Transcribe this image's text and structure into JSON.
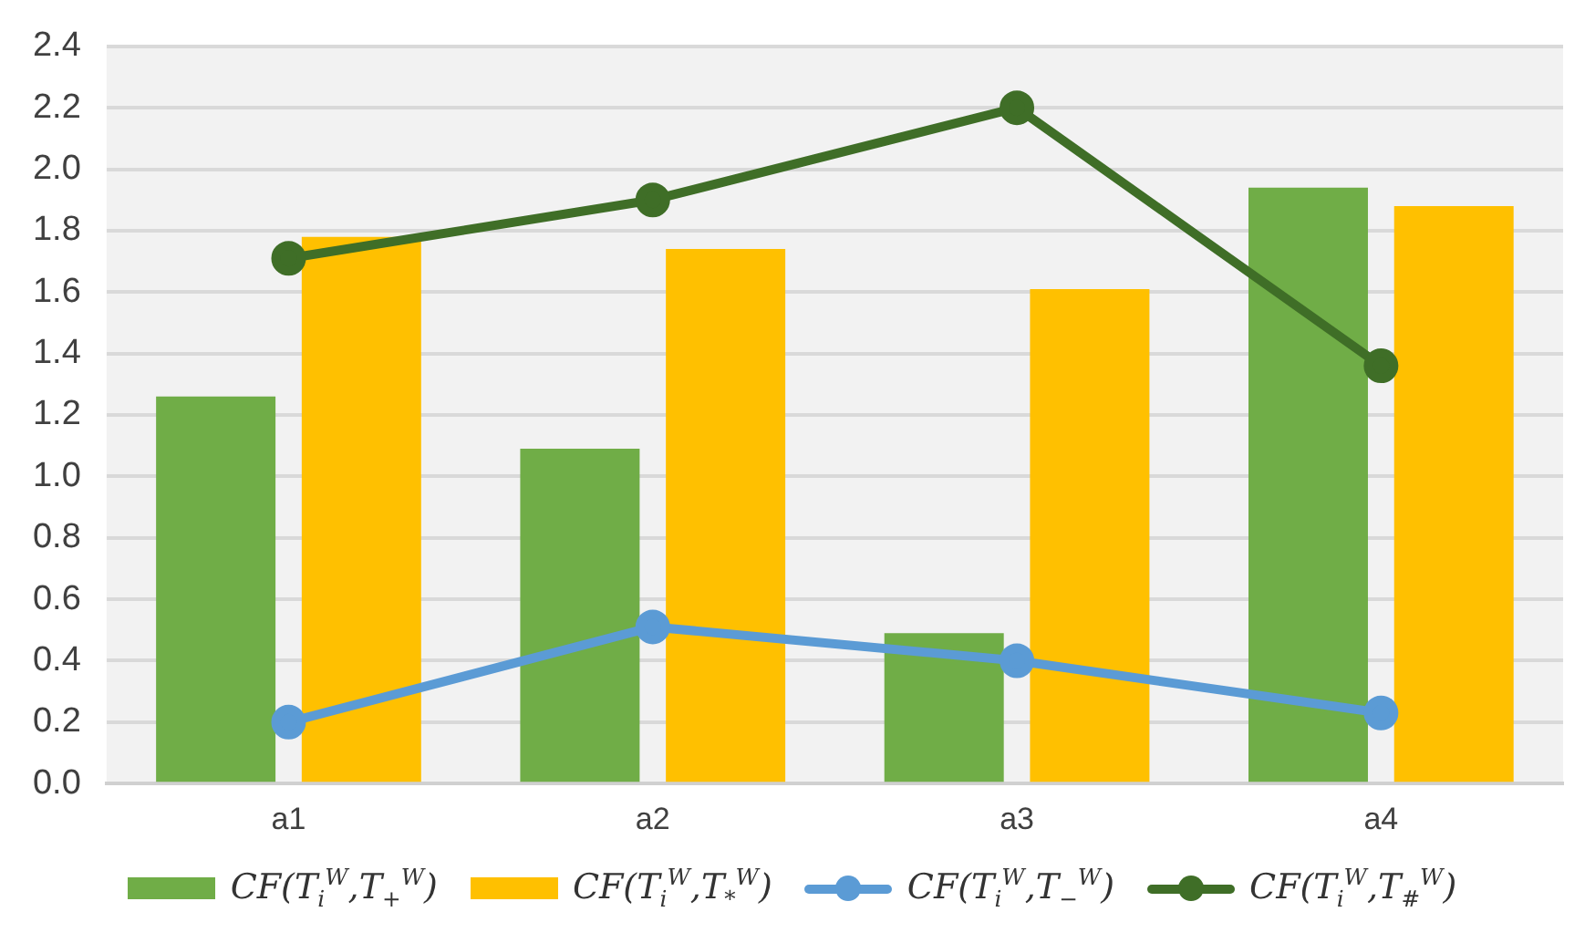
{
  "chart_data": {
    "type": "bar",
    "categories": [
      "a1",
      "a2",
      "a3",
      "a4"
    ],
    "series": [
      {
        "name": "CF(T$_{i}$$^{W}$,T$_{+}$$^{W}$)",
        "color": "#70ad47",
        "values": [
          1.26,
          1.09,
          0.49,
          1.94
        ]
      },
      {
        "name": "CF(T$_{i}$$^{W}$,T$_{*}$$^{W}$)",
        "color": "#ffc000",
        "values": [
          1.78,
          1.74,
          1.61,
          1.88
        ]
      },
      {
        "name": "CF(T$_{i}$$^{W}$,T$_{−}$$^{W}$)",
        "color": "#5b9bd5",
        "type": "line",
        "values": [
          0.2,
          0.51,
          0.4,
          0.23
        ]
      },
      {
        "name": "CF(T$_{i}$$^{W}$,T$_{#}$$^{W}$)",
        "color": "#3f6e27",
        "type": "line",
        "values": [
          1.71,
          1.9,
          2.2,
          1.36
        ]
      }
    ],
    "ylim": [
      0,
      2.4
    ],
    "yticks": [
      {
        "value": 0,
        "label": "0.0"
      },
      {
        "value": 0.2,
        "label": "0.2"
      },
      {
        "value": 0.4,
        "label": "0.4"
      },
      {
        "value": 0.6,
        "label": "0.6"
      },
      {
        "value": 0.8,
        "label": "0.8"
      },
      {
        "value": 1,
        "label": "1.0"
      },
      {
        "value": 1.2,
        "label": "1.2"
      },
      {
        "value": 1.4,
        "label": "1.4"
      },
      {
        "value": 1.6,
        "label": "1.6"
      },
      {
        "value": 1.8,
        "label": "1.8"
      },
      {
        "value": 2,
        "label": "2.0"
      },
      {
        "value": 2.2,
        "label": "2.2"
      },
      {
        "value": 2.4,
        "label": "2.4"
      }
    ],
    "grid": "y",
    "legend": "bottom",
    "marker": "circle",
    "line_style": "solid"
  }
}
